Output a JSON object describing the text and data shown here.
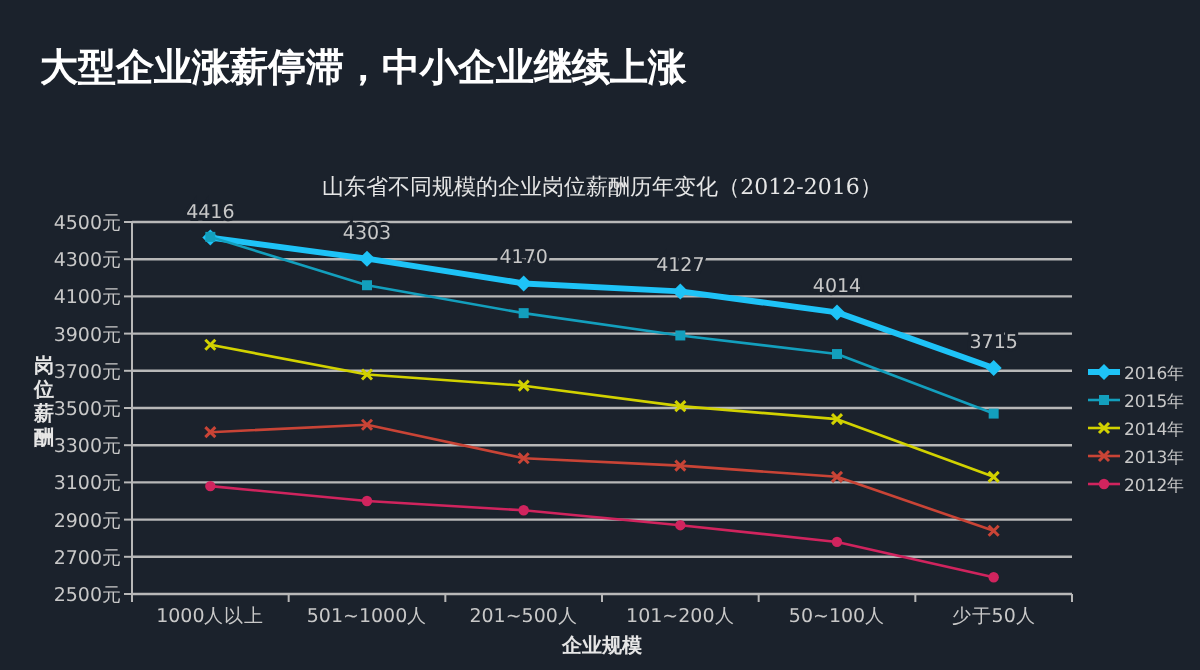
{
  "chart_data": {
    "type": "line",
    "title": "大型企业涨薪停滞，中小企业继续上涨",
    "subtitle": "山东省不同规模的企业岗位薪酬历年变化（2012-2016）",
    "xlabel": "企业规模",
    "ylabel": "岗位薪酬",
    "categories": [
      "1000人以上",
      "501~1000人",
      "201~500人",
      "101~200人",
      "50~100人",
      "少于50人"
    ],
    "ylim": [
      2500,
      4500
    ],
    "yticks": [
      {
        "value": 2500,
        "label": "2500元"
      },
      {
        "value": 2700,
        "label": "2700元"
      },
      {
        "value": 2900,
        "label": "2900元"
      },
      {
        "value": 3100,
        "label": "3100元"
      },
      {
        "value": 3300,
        "label": "3300元"
      },
      {
        "value": 3500,
        "label": "3500元"
      },
      {
        "value": 3700,
        "label": "3700元"
      },
      {
        "value": 3900,
        "label": "3900元"
      },
      {
        "value": 4100,
        "label": "4100元"
      },
      {
        "value": 4300,
        "label": "4300元"
      },
      {
        "value": 4500,
        "label": "4500元"
      }
    ],
    "grid": "y",
    "legend": "right",
    "series": [
      {
        "name": "2016年",
        "color": "#1ec3f7",
        "marker": "diamond",
        "values": [
          4416,
          4303,
          4170,
          4127,
          4014,
          3715
        ],
        "data_labels": true
      },
      {
        "name": "2015年",
        "color": "#139fbd",
        "marker": "square",
        "values": [
          4420,
          4160,
          4010,
          3890,
          3790,
          3470
        ]
      },
      {
        "name": "2014年",
        "color": "#d2d200",
        "marker": "cross",
        "values": [
          3840,
          3680,
          3620,
          3510,
          3440,
          3130
        ]
      },
      {
        "name": "2013年",
        "color": "#c94436",
        "marker": "cross",
        "values": [
          3370,
          3410,
          3230,
          3190,
          3130,
          2840
        ]
      },
      {
        "name": "2012年",
        "color": "#d0245e",
        "marker": "circle",
        "values": [
          3080,
          3000,
          2950,
          2870,
          2780,
          2590
        ]
      }
    ]
  }
}
